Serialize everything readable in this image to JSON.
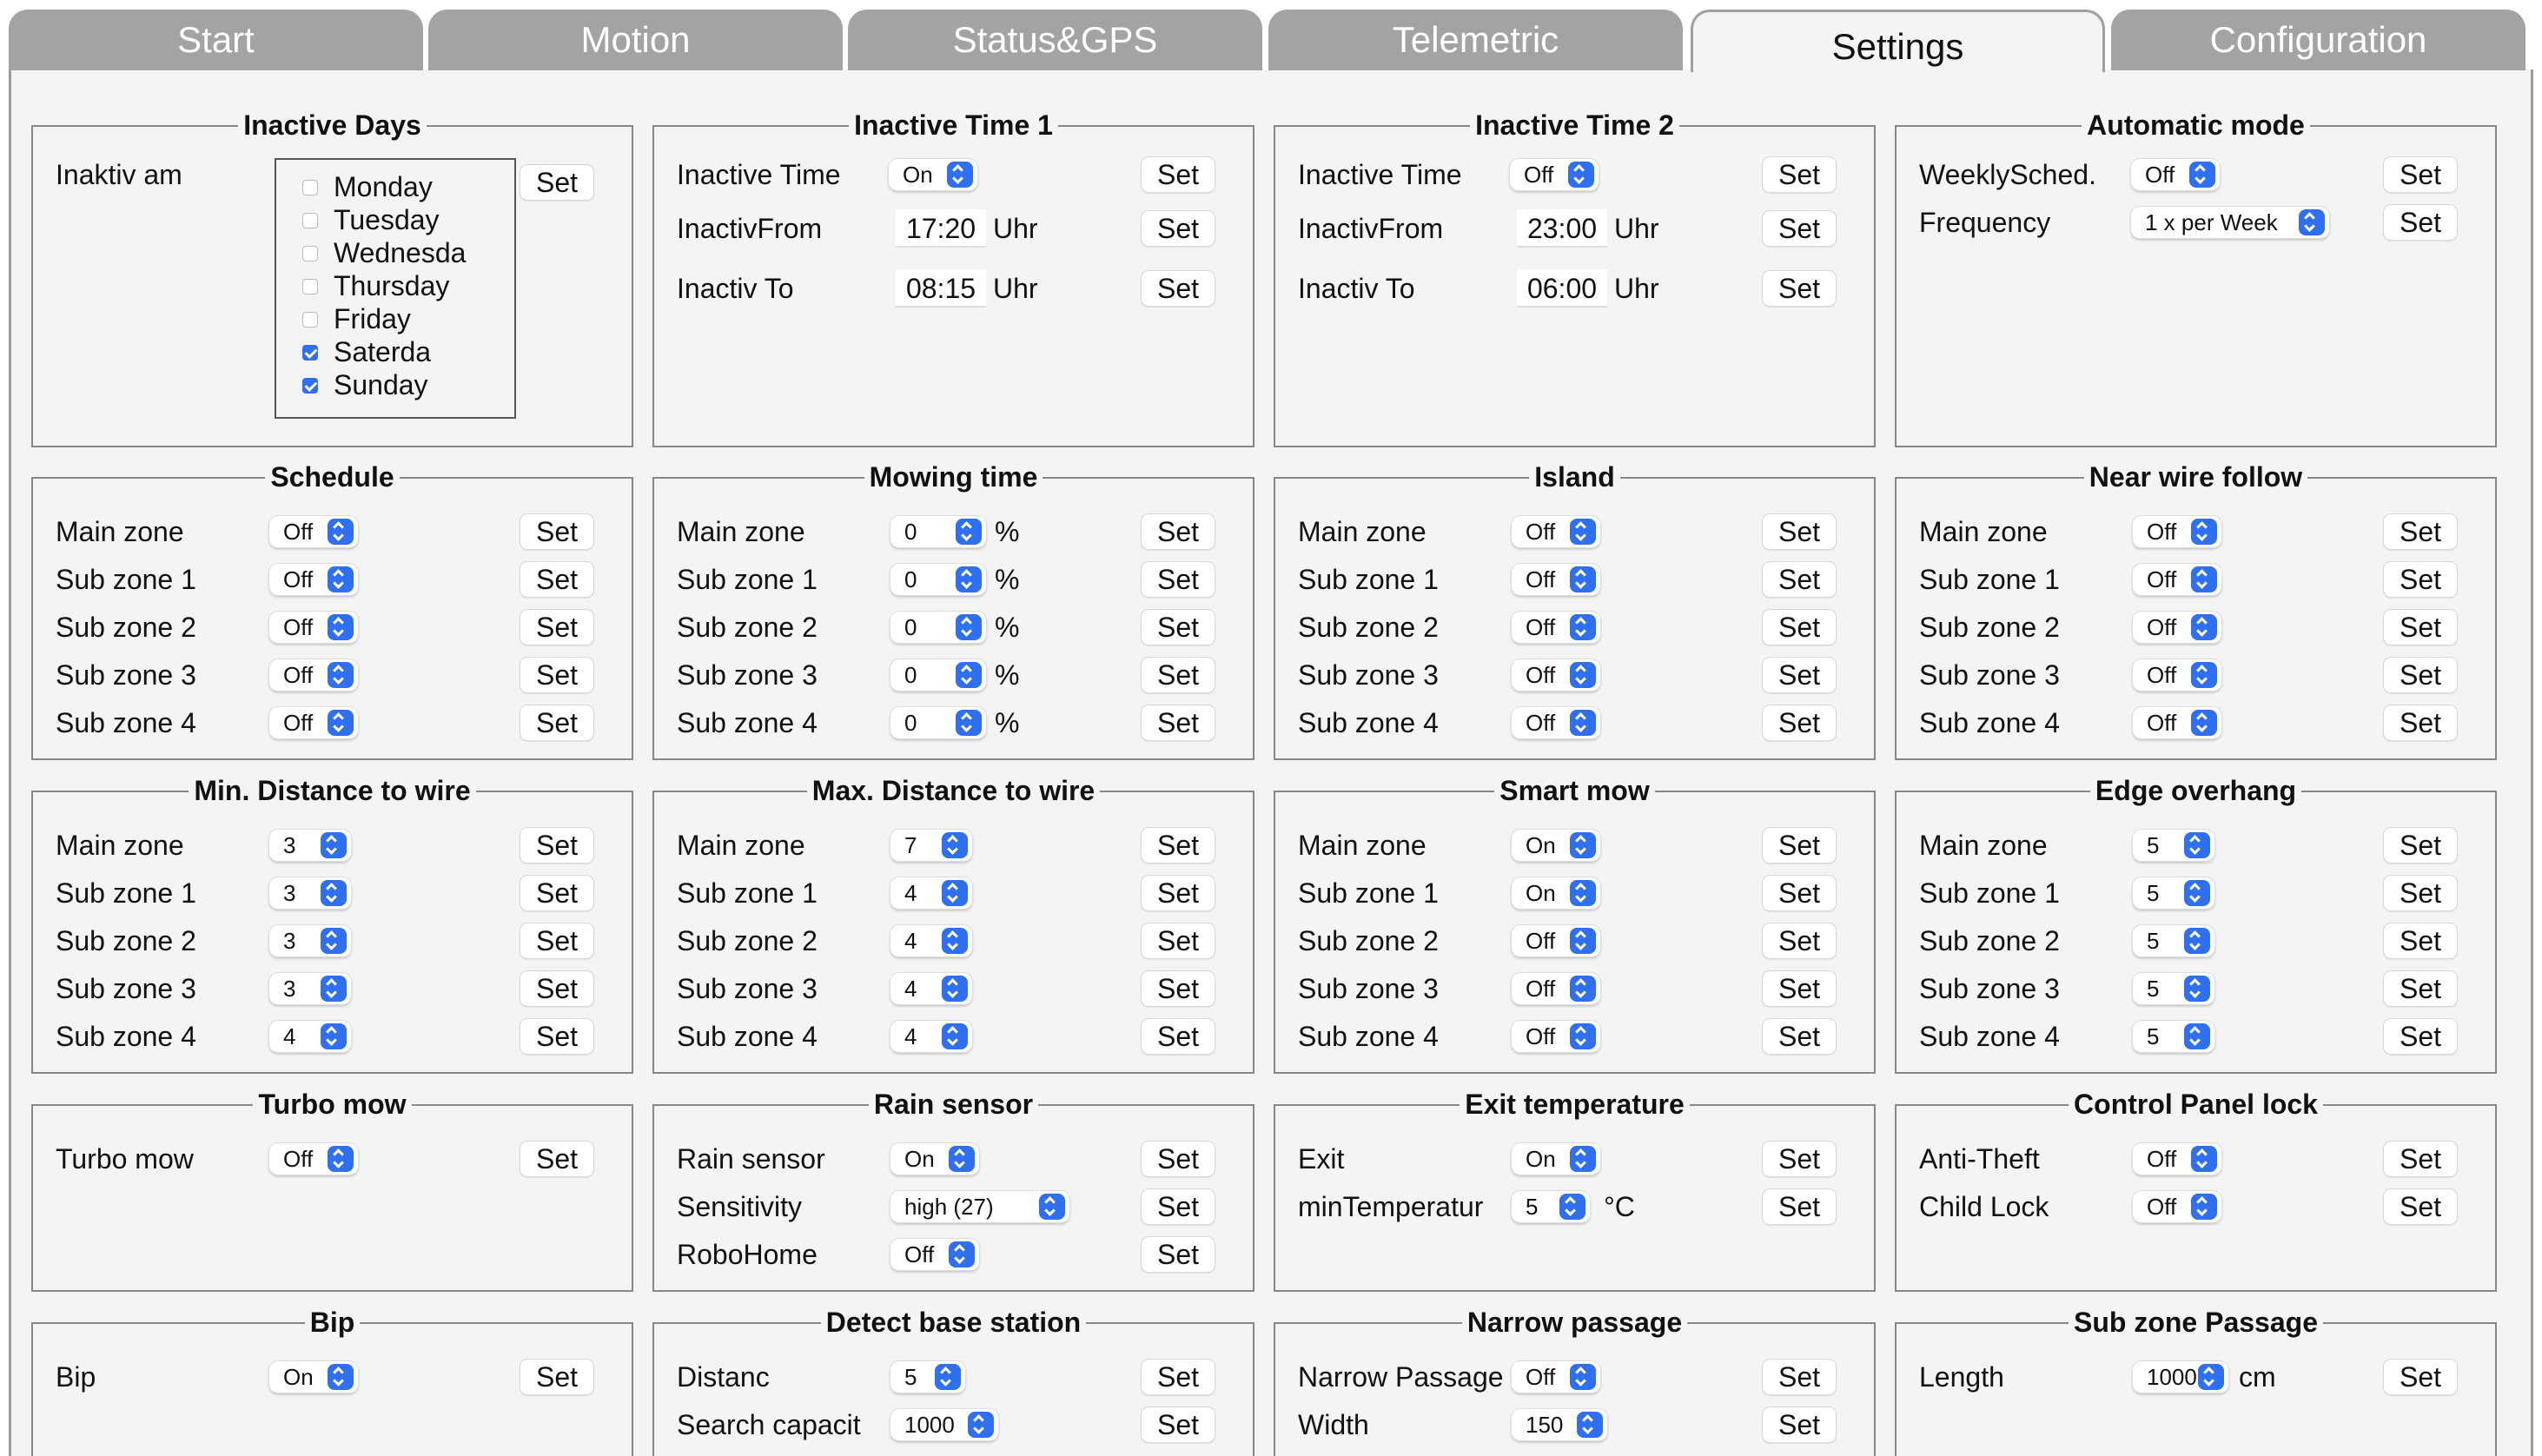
{
  "tabs": [
    "Start",
    "Motion",
    "Status&GPS",
    "Telemetric",
    "Settings",
    "Configuration"
  ],
  "set_label": "Set",
  "inactive_days": {
    "title": "Inactive Days",
    "label": "Inaktiv am",
    "days": [
      {
        "name": "Monday",
        "checked": false
      },
      {
        "name": "Tuesday",
        "checked": false
      },
      {
        "name": "Wednesda",
        "checked": false
      },
      {
        "name": "Thursday",
        "checked": false
      },
      {
        "name": "Friday",
        "checked": false
      },
      {
        "name": "Saterda",
        "checked": true
      },
      {
        "name": "Sunday",
        "checked": true
      }
    ]
  },
  "inactive_time_1": {
    "title": "Inactive Time 1",
    "rows": [
      {
        "label": "Inactive Time",
        "select": "On"
      },
      {
        "label": "InactivFrom",
        "input": "17:20",
        "unit": "Uhr"
      },
      {
        "label": "Inactiv To",
        "input": "08:15",
        "unit": "Uhr"
      }
    ]
  },
  "inactive_time_2": {
    "title": "Inactive Time 2",
    "rows": [
      {
        "label": "Inactive Time",
        "select": "Off"
      },
      {
        "label": "InactivFrom",
        "input": "23:00",
        "unit": "Uhr"
      },
      {
        "label": "Inactiv To",
        "input": "06:00",
        "unit": "Uhr"
      }
    ]
  },
  "automatic_mode": {
    "title": "Automatic mode",
    "rows": [
      {
        "label": "WeeklySched.",
        "select": "Off"
      },
      {
        "label": "Frequency",
        "select": "1 x per Week"
      }
    ]
  },
  "schedule": {
    "title": "Schedule",
    "rows": [
      {
        "label": "Main zone",
        "select": "Off"
      },
      {
        "label": "Sub zone 1",
        "select": "Off"
      },
      {
        "label": "Sub zone 2",
        "select": "Off"
      },
      {
        "label": "Sub zone 3",
        "select": "Off"
      },
      {
        "label": "Sub zone 4",
        "select": "Off"
      }
    ]
  },
  "mowing_time": {
    "title": "Mowing time",
    "rows": [
      {
        "label": "Main zone",
        "select": "0",
        "unit": "%"
      },
      {
        "label": "Sub zone 1",
        "select": "0",
        "unit": "%"
      },
      {
        "label": "Sub zone 2",
        "select": "0",
        "unit": "%"
      },
      {
        "label": "Sub zone 3",
        "select": "0",
        "unit": "%"
      },
      {
        "label": "Sub zone 4",
        "select": "0",
        "unit": "%"
      }
    ]
  },
  "island": {
    "title": "Island",
    "rows": [
      {
        "label": "Main zone",
        "select": "Off"
      },
      {
        "label": "Sub zone 1",
        "select": "Off"
      },
      {
        "label": "Sub zone 2",
        "select": "Off"
      },
      {
        "label": "Sub zone 3",
        "select": "Off"
      },
      {
        "label": "Sub zone 4",
        "select": "Off"
      }
    ]
  },
  "near_wire_follow": {
    "title": "Near wire follow",
    "rows": [
      {
        "label": "Main zone",
        "select": "Off"
      },
      {
        "label": "Sub zone 1",
        "select": "Off"
      },
      {
        "label": "Sub zone 2",
        "select": "Off"
      },
      {
        "label": "Sub zone 3",
        "select": "Off"
      },
      {
        "label": "Sub zone 4",
        "select": "Off"
      }
    ]
  },
  "min_distance": {
    "title": "Min. Distance to wire",
    "rows": [
      {
        "label": "Main zone",
        "select": "3"
      },
      {
        "label": "Sub zone 1",
        "select": "3"
      },
      {
        "label": "Sub zone 2",
        "select": "3"
      },
      {
        "label": "Sub zone 3",
        "select": "3"
      },
      {
        "label": "Sub zone 4",
        "select": "4"
      }
    ]
  },
  "max_distance": {
    "title": "Max. Distance to wire",
    "rows": [
      {
        "label": "Main zone",
        "select": "7"
      },
      {
        "label": "Sub zone 1",
        "select": "4"
      },
      {
        "label": "Sub zone 2",
        "select": "4"
      },
      {
        "label": "Sub zone 3",
        "select": "4"
      },
      {
        "label": "Sub zone 4",
        "select": "4"
      }
    ]
  },
  "smart_mow": {
    "title": "Smart mow",
    "rows": [
      {
        "label": "Main zone",
        "select": "On"
      },
      {
        "label": "Sub zone 1",
        "select": "On"
      },
      {
        "label": "Sub zone 2",
        "select": "Off"
      },
      {
        "label": "Sub zone 3",
        "select": "Off"
      },
      {
        "label": "Sub zone 4",
        "select": "Off"
      }
    ]
  },
  "edge_overhang": {
    "title": "Edge overhang",
    "rows": [
      {
        "label": "Main zone",
        "select": "5"
      },
      {
        "label": "Sub zone 1",
        "select": "5"
      },
      {
        "label": "Sub zone 2",
        "select": "5"
      },
      {
        "label": "Sub zone 3",
        "select": "5"
      },
      {
        "label": "Sub zone 4",
        "select": "5"
      }
    ]
  },
  "turbo_mow": {
    "title": "Turbo mow",
    "rows": [
      {
        "label": "Turbo mow",
        "select": "Off"
      }
    ]
  },
  "rain_sensor": {
    "title": "Rain sensor",
    "rows": [
      {
        "label": "Rain sensor",
        "select": "On"
      },
      {
        "label": "Sensitivity",
        "select": "high (27)"
      },
      {
        "label": "RoboHome",
        "select": "Off"
      }
    ]
  },
  "exit_temperature": {
    "title": "Exit temperature",
    "rows": [
      {
        "label": "Exit",
        "select": "On"
      },
      {
        "label": "minTemperatur",
        "select": "5",
        "unit": "°C"
      }
    ]
  },
  "control_panel_lock": {
    "title": "Control Panel lock",
    "rows": [
      {
        "label": "Anti-Theft",
        "select": "Off"
      },
      {
        "label": "Child Lock",
        "select": "Off"
      }
    ]
  },
  "bip": {
    "title": "Bip",
    "rows": [
      {
        "label": "Bip",
        "select": "On"
      }
    ]
  },
  "detect_base_station": {
    "title": "Detect base station",
    "rows": [
      {
        "label": "Distanc",
        "select": "5"
      },
      {
        "label": "Search capacit",
        "select": "1000"
      }
    ]
  },
  "narrow_passage": {
    "title": "Narrow passage",
    "rows": [
      {
        "label": "Narrow Passage",
        "select": "Off"
      },
      {
        "label": "Width",
        "select": "150"
      }
    ]
  },
  "sub_zone_passage": {
    "title": "Sub zone Passage",
    "rows": [
      {
        "label": "Length",
        "select": "1000",
        "unit": "cm"
      }
    ]
  }
}
